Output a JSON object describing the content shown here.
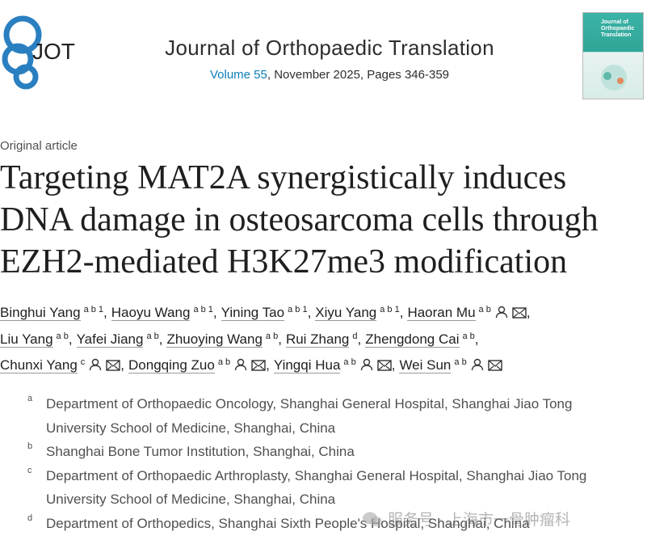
{
  "header": {
    "logo": "JOT",
    "journal": "Journal of Orthopaedic Translation",
    "volume": "Volume 55",
    "issue_info": ", November 2025, Pages 346-359",
    "cover_title": "Journal of Orthopaedic Translation"
  },
  "article_type": "Original article",
  "title_lines": [
    "Targeting MAT2A synergistically induces",
    "DNA damage in osteosarcoma cells through",
    "EZH2-mediated H3K27me3 modification"
  ],
  "separator": ",",
  "authors": [
    {
      "name": "Binghui Yang",
      "sup": "a b 1"
    },
    {
      "name": "Haoyu Wang",
      "sup": "a b 1"
    },
    {
      "name": "Yining Tao",
      "sup": "a b 1"
    },
    {
      "name": "Xiyu Yang",
      "sup": "a b 1"
    },
    {
      "name": "Haoran Mu",
      "sup": "a b"
    },
    {
      "name": "Liu Yang",
      "sup": "a b"
    },
    {
      "name": "Yafei Jiang",
      "sup": "a b"
    },
    {
      "name": "Zhuoying Wang",
      "sup": "a b"
    },
    {
      "name": "Rui Zhang",
      "sup": "d"
    },
    {
      "name": "Zhengdong Cai",
      "sup": "a b"
    },
    {
      "name": "Chunxi Yang",
      "sup": "c"
    },
    {
      "name": "Dongqing Zuo",
      "sup": "a b"
    },
    {
      "name": "Yingqi Hua",
      "sup": "a b"
    },
    {
      "name": "Wei Sun",
      "sup": "a b"
    }
  ],
  "affiliations": [
    {
      "label": "a",
      "text": "Department of Orthopaedic Oncology, Shanghai General Hospital, Shanghai Jiao Tong University School of Medicine, Shanghai, China"
    },
    {
      "label": "b",
      "text": "Shanghai Bone Tumor Institution, Shanghai, China"
    },
    {
      "label": "c",
      "text": "Department of Orthopaedic Arthroplasty, Shanghai General Hospital, Shanghai Jiao Tong University School of Medicine, Shanghai, China"
    },
    {
      "label": "d",
      "text": "Department of Orthopedics, Shanghai Sixth People's Hospital, Shanghai, China"
    }
  ],
  "watermark": "服务号 · 上海市一骨肿瘤科"
}
